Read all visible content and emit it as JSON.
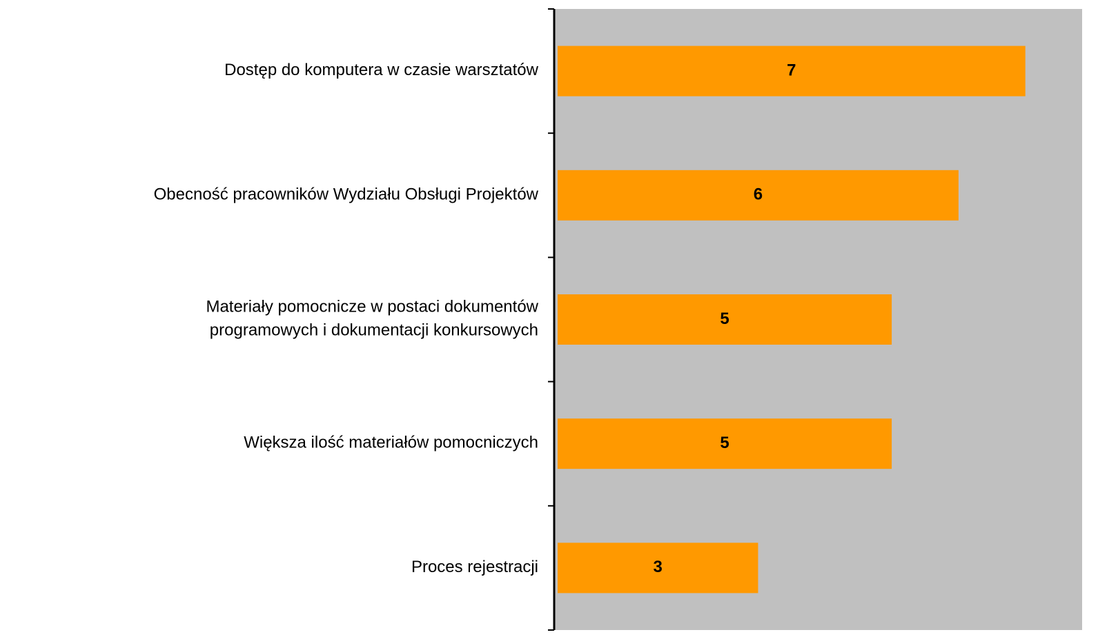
{
  "chart_data": {
    "type": "barh",
    "categories": [
      "Dostęp do komputera w czasie warsztatów",
      "Obecność pracowników Wydziału Obsługi Projektów",
      "Materiały pomocnicze w postaci dokumentów\nprogramowych i dokumentacji konkursowych",
      "Większa ilość materiałów pomocniczych",
      "Proces rejestracji"
    ],
    "values": [
      7,
      6,
      5,
      5,
      3
    ],
    "color": "#ff9900",
    "plot_background": "#c0c0c0",
    "xlim": [
      0,
      7.85
    ]
  }
}
